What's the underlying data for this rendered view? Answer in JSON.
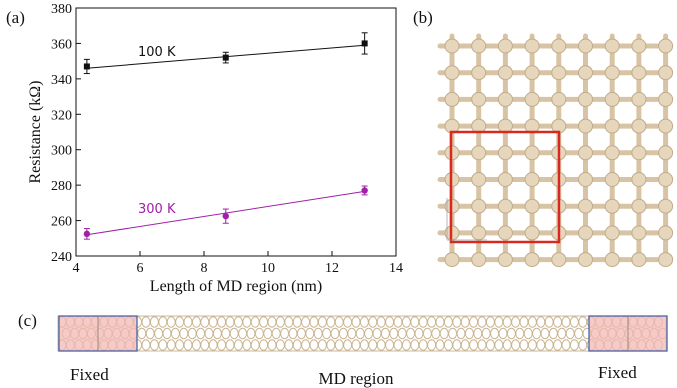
{
  "panels": {
    "a": "(a)",
    "b": "(b)",
    "c": "(c)"
  },
  "chart_data": {
    "type": "scatter",
    "xlabel": "Length of MD region  (nm)",
    "ylabel": "Resistance  (kΩ)",
    "xlim": [
      4,
      14
    ],
    "ylim": [
      240,
      380
    ],
    "xticks": [
      4,
      6,
      8,
      10,
      12,
      14
    ],
    "yticks": [
      240,
      260,
      280,
      300,
      320,
      340,
      360,
      380
    ],
    "grid": false,
    "series": [
      {
        "name": "100 K",
        "color": "#111111",
        "x": [
          4.34,
          8.68,
          13.02
        ],
        "y": [
          347,
          352,
          360
        ],
        "err": [
          4,
          3,
          6
        ],
        "fit": [
          [
            4.34,
            346
          ],
          [
            13.02,
            359
          ]
        ]
      },
      {
        "name": "300 K",
        "color": "#a020a8",
        "x": [
          4.34,
          8.68,
          13.02
        ],
        "y": [
          252.5,
          262.5,
          277
        ],
        "err": [
          3,
          4,
          2.5
        ],
        "fit": [
          [
            4.34,
            252
          ],
          [
            13.02,
            276.5
          ]
        ]
      }
    ]
  },
  "structure_b": {
    "lattice_color": "#d8c4a4",
    "highlight_color": "#d8281f"
  },
  "structure_c": {
    "fixed_fill": "#f2b8b4",
    "box_outline": "#4a63a8",
    "labels": {
      "left": "Fixed",
      "middle": "MD region",
      "right": "Fixed"
    }
  }
}
